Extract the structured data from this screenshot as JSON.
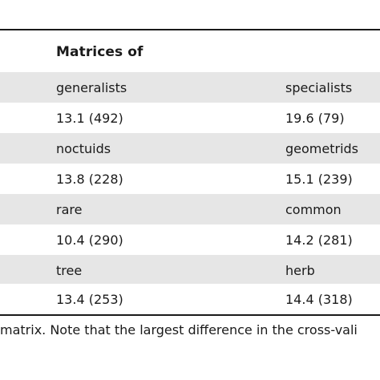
{
  "table": {
    "header": "Matrices of",
    "rows": [
      {
        "left": "generalists",
        "right": "specialists",
        "shaded": true
      },
      {
        "left": "13.1 (492)",
        "right": "19.6 (79)",
        "shaded": false
      },
      {
        "left": "noctuids",
        "right": "geometrids",
        "shaded": true
      },
      {
        "left": "13.8 (228)",
        "right": "15.1 (239)",
        "shaded": false
      },
      {
        "left": "rare",
        "right": "common",
        "shaded": true
      },
      {
        "left": "10.4 (290)",
        "right": "14.2 (281)",
        "shaded": false
      },
      {
        "left": "tree",
        "right": "herb",
        "shaded": true
      },
      {
        "left": "13.4 (253)",
        "right": "14.4 (318)",
        "shaded": false
      }
    ]
  },
  "footnote": "matrix. Note that the largest difference in the cross-vali"
}
